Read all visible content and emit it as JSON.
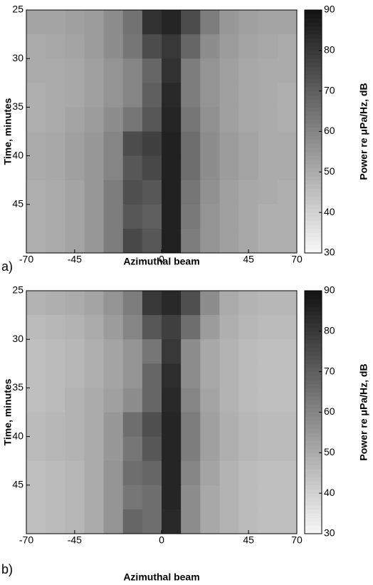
{
  "chart_data": [
    {
      "type": "heatmap",
      "panel_label": "a)",
      "xlabel": "Azimuthal beam",
      "ylabel": "Time, minutes",
      "colorbar_label": "Power re μPa/Hz, dB",
      "xlim": [
        -70,
        70
      ],
      "ylim": [
        25,
        50
      ],
      "xticks": [
        -70,
        -45,
        0,
        45,
        70
      ],
      "yticks": [
        25,
        30,
        35,
        40,
        45
      ],
      "clim": [
        30,
        90
      ],
      "cticks": [
        30,
        40,
        50,
        60,
        70,
        80,
        90
      ],
      "xbins": [
        -70,
        -60,
        -50,
        -40,
        -30,
        -20,
        -10,
        0,
        10,
        20,
        30,
        40,
        50,
        60,
        70
      ],
      "ybins": [
        25,
        27.5,
        30,
        32.5,
        35,
        37.5,
        40,
        42.5,
        45,
        47.5,
        50
      ],
      "z": [
        [
          52,
          52,
          53,
          54,
          58,
          65,
          82,
          85,
          75,
          62,
          55,
          53,
          52,
          52
        ],
        [
          50,
          51,
          52,
          54,
          58,
          64,
          75,
          80,
          68,
          58,
          54,
          52,
          51,
          50
        ],
        [
          50,
          50,
          51,
          53,
          56,
          60,
          68,
          82,
          62,
          56,
          53,
          51,
          50,
          50
        ],
        [
          49,
          50,
          51,
          53,
          56,
          60,
          70,
          84,
          62,
          56,
          53,
          51,
          50,
          49
        ],
        [
          49,
          50,
          52,
          54,
          58,
          64,
          72,
          85,
          64,
          57,
          53,
          51,
          50,
          49
        ],
        [
          50,
          51,
          53,
          55,
          60,
          75,
          78,
          86,
          66,
          58,
          54,
          52,
          50,
          50
        ],
        [
          50,
          51,
          53,
          55,
          60,
          72,
          76,
          86,
          66,
          58,
          54,
          52,
          50,
          50
        ],
        [
          49,
          50,
          52,
          55,
          62,
          74,
          72,
          86,
          64,
          57,
          53,
          51,
          50,
          49
        ],
        [
          49,
          50,
          52,
          55,
          62,
          72,
          70,
          86,
          63,
          56,
          53,
          51,
          49,
          49
        ],
        [
          49,
          50,
          52,
          55,
          62,
          76,
          72,
          86,
          62,
          56,
          53,
          51,
          49,
          49
        ]
      ]
    },
    {
      "type": "heatmap",
      "panel_label": "b)",
      "xlabel": "Azimuthal beam",
      "ylabel": "Time, minutes",
      "colorbar_label": "Power re μPa/Hz, dB",
      "xlim": [
        -70,
        70
      ],
      "ylim": [
        25,
        50
      ],
      "xticks": [
        -70,
        -45,
        0,
        45,
        70
      ],
      "yticks": [
        25,
        30,
        35,
        40,
        45
      ],
      "clim": [
        30,
        90
      ],
      "cticks": [
        30,
        40,
        50,
        60,
        70,
        80,
        90
      ],
      "xbins": [
        -70,
        -60,
        -50,
        -40,
        -30,
        -20,
        -10,
        0,
        10,
        20,
        30,
        40,
        50,
        60,
        70
      ],
      "ybins": [
        25,
        27.5,
        30,
        32.5,
        35,
        37.5,
        40,
        42.5,
        45,
        47.5,
        50
      ],
      "z": [
        [
          48,
          49,
          50,
          52,
          56,
          62,
          80,
          84,
          74,
          58,
          50,
          48,
          47,
          47
        ],
        [
          46,
          47,
          48,
          50,
          54,
          60,
          72,
          78,
          66,
          54,
          49,
          47,
          46,
          46
        ],
        [
          45,
          46,
          47,
          49,
          52,
          56,
          64,
          80,
          58,
          51,
          48,
          46,
          45,
          45
        ],
        [
          45,
          46,
          47,
          49,
          52,
          56,
          68,
          83,
          58,
          51,
          48,
          46,
          45,
          45
        ],
        [
          45,
          46,
          48,
          50,
          53,
          58,
          68,
          84,
          60,
          52,
          48,
          46,
          45,
          45
        ],
        [
          46,
          47,
          48,
          50,
          55,
          66,
          74,
          85,
          62,
          53,
          49,
          47,
          46,
          46
        ],
        [
          46,
          47,
          48,
          50,
          55,
          64,
          72,
          85,
          62,
          53,
          49,
          47,
          46,
          46
        ],
        [
          45,
          46,
          47,
          50,
          56,
          66,
          68,
          85,
          60,
          52,
          48,
          46,
          45,
          45
        ],
        [
          45,
          46,
          47,
          50,
          56,
          64,
          66,
          85,
          58,
          51,
          48,
          46,
          45,
          45
        ],
        [
          45,
          46,
          47,
          50,
          56,
          68,
          66,
          84,
          58,
          51,
          48,
          46,
          45,
          45
        ]
      ]
    }
  ]
}
